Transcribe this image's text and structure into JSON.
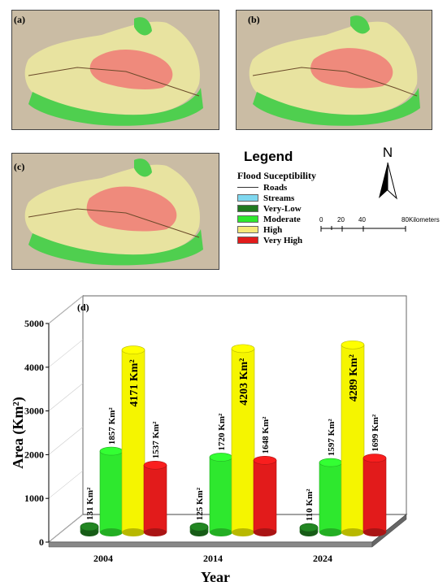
{
  "maps": [
    {
      "id": "a",
      "label": "(a)"
    },
    {
      "id": "b",
      "label": "(b)"
    },
    {
      "id": "c",
      "label": "(c)"
    }
  ],
  "legend": {
    "title": "Legend",
    "subtitle": "Flood Suceptibility",
    "items": [
      {
        "label": "Roads",
        "type": "line",
        "color": "#333333"
      },
      {
        "label": "Streams",
        "type": "swatch",
        "color": "#7fd8f0"
      },
      {
        "label": "Very-Low",
        "type": "swatch",
        "color": "#1f7a1f"
      },
      {
        "label": "Moderate",
        "type": "swatch",
        "color": "#2ee82e"
      },
      {
        "label": "High",
        "type": "swatch",
        "color": "#f5e87a"
      },
      {
        "label": "Very High",
        "type": "swatch",
        "color": "#e21b1b"
      }
    ]
  },
  "north_arrow": {
    "letter": "N"
  },
  "scale_bar": {
    "ticks": [
      "0",
      "20",
      "40",
      "80"
    ],
    "unit": "Kilometers"
  },
  "chart_data": {
    "type": "bar",
    "panel_label": "(d)",
    "categories": [
      "2004",
      "2014",
      "2024"
    ],
    "xlabel": "Year",
    "ylabel": "Area (Km²)",
    "ylim": [
      0,
      5000
    ],
    "yticks": [
      0,
      1000,
      2000,
      3000,
      4000,
      5000
    ],
    "series": [
      {
        "name": "Very-Low",
        "color": "#1f7a1f",
        "values": [
          131,
          125,
          110
        ],
        "labels": [
          "131 Km²",
          "125 Km²",
          "110 Km²"
        ]
      },
      {
        "name": "Moderate",
        "color": "#2ee82e",
        "values": [
          1857,
          1720,
          1597
        ],
        "labels": [
          "1857 Km²",
          "1720 Km²",
          "1597 Km²"
        ]
      },
      {
        "name": "High",
        "color": "#f5f500",
        "values": [
          4171,
          4203,
          4289
        ],
        "labels": [
          "4171 Km²",
          "4203 Km²",
          "4289 Km²"
        ]
      },
      {
        "name": "Very High",
        "color": "#e21b1b",
        "values": [
          1537,
          1648,
          1699
        ],
        "labels": [
          "1537 Km²",
          "1648 Km²",
          "1699 Km²"
        ]
      }
    ]
  }
}
